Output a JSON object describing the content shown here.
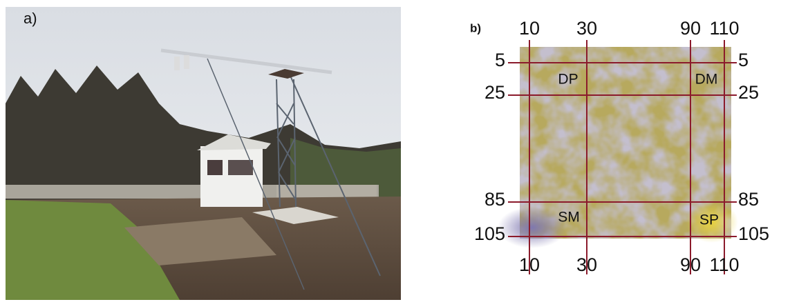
{
  "panels": {
    "a": {
      "label": "a)"
    },
    "b": {
      "label": "b)",
      "x_lines": [
        10,
        30,
        90,
        110
      ],
      "y_lines": [
        5,
        25,
        85,
        105
      ],
      "regions": [
        "DP",
        "DM",
        "SM",
        "SP"
      ]
    }
  }
}
